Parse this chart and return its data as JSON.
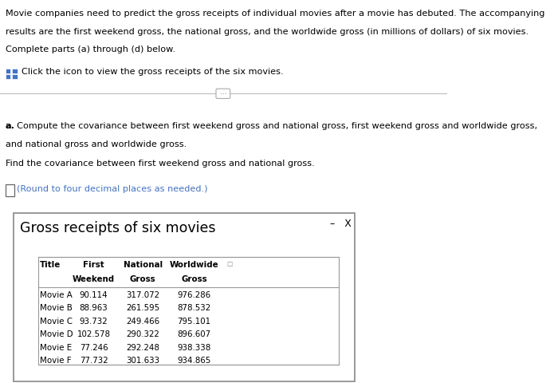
{
  "page_bg": "#ffffff",
  "top_text_lines": [
    "Movie companies need to predict the gross receipts of individual movies after a movie has debuted. The accompanying",
    "results are the first weekend gross, the national gross, and the worldwide gross (in millions of dollars) of six movies.",
    "Complete parts (a) through (d) below."
  ],
  "click_text": "Click the icon to view the gross receipts of the six movies.",
  "part_a_line1": "a. Compute the covariance between first weekend gross and national gross, first weekend gross and worldwide gross,",
  "part_a_line2": "and national gross and worldwide gross.",
  "find_text": "Find the covariance between first weekend gross and national gross.",
  "round_text": "(Round to four decimal places as needed.)",
  "popup_title": "Gross receipts of six movies",
  "movies": [
    "Movie A",
    "Movie B",
    "Movie C",
    "Movie D",
    "Movie E",
    "Movie F"
  ],
  "first_weekend": [
    90.114,
    88.963,
    93.732,
    102.578,
    77.246,
    77.732
  ],
  "national_gross": [
    317.072,
    261.595,
    249.466,
    290.322,
    292.248,
    301.633
  ],
  "worldwide_gross": [
    976.286,
    878.532,
    795.101,
    896.607,
    938.338,
    934.865
  ],
  "icon_color": "#4472c4",
  "link_color": "#4472c4",
  "text_color": "#000000",
  "popup_border": "#888888",
  "table_border": "#999999"
}
